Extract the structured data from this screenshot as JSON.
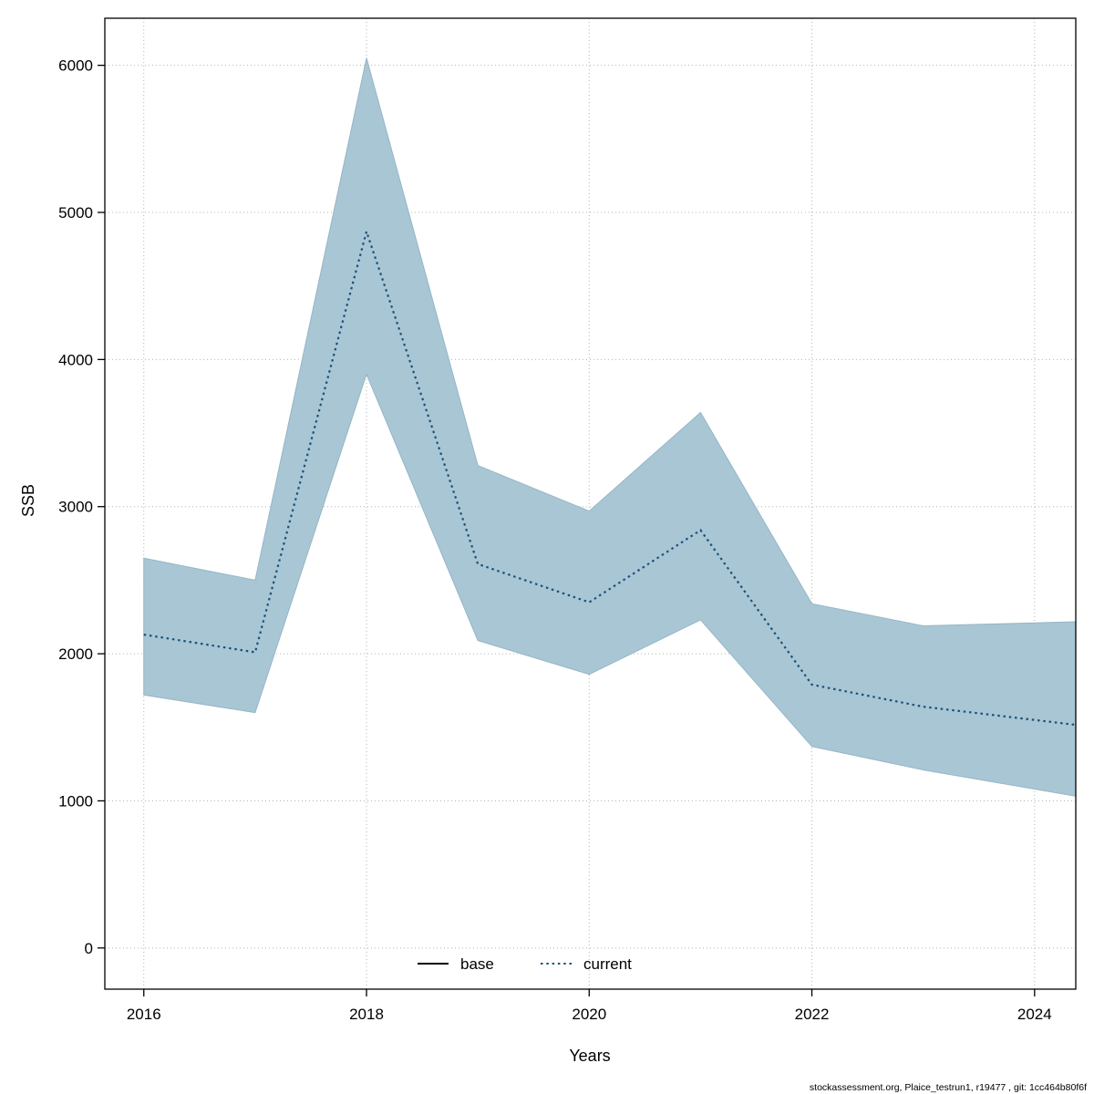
{
  "chart_data": {
    "type": "line",
    "title": "",
    "xlabel": "Years",
    "ylabel": "SSB",
    "x": [
      2016,
      2017,
      2018,
      2019,
      2020,
      2021,
      2022,
      2023,
      2024
    ],
    "series": [
      {
        "name": "current",
        "line_style": "dotted",
        "color": "#1a5276",
        "values": [
          2130,
          2010,
          4870,
          2610,
          2350,
          2840,
          1790,
          1640,
          1550
        ]
      }
    ],
    "band": {
      "name": "confidence-band",
      "color": "#a9c6d5",
      "upper": [
        2650,
        2500,
        6050,
        3280,
        2970,
        3640,
        2340,
        2190,
        2210
      ],
      "lower": [
        1720,
        1600,
        3900,
        2090,
        1860,
        2230,
        1370,
        1210,
        1080
      ]
    },
    "xticks": [
      2016,
      2018,
      2020,
      2022,
      2024
    ],
    "yticks": [
      0,
      1000,
      2000,
      3000,
      4000,
      5000,
      6000
    ],
    "xlim": [
      2015.65,
      2024.37
    ],
    "ylim": [
      -280,
      6320
    ],
    "grid": true,
    "grid_style": "dotted",
    "legend_position": "bottom-center-inside",
    "legend": [
      {
        "label": "base",
        "line_style": "solid",
        "color": "#000000"
      },
      {
        "label": "current",
        "line_style": "dotted",
        "color": "#1a5276"
      }
    ]
  },
  "footer": {
    "text": "stockassessment.org, Plaice_testrun1, r19477 , git: 1cc464b80f6f"
  }
}
